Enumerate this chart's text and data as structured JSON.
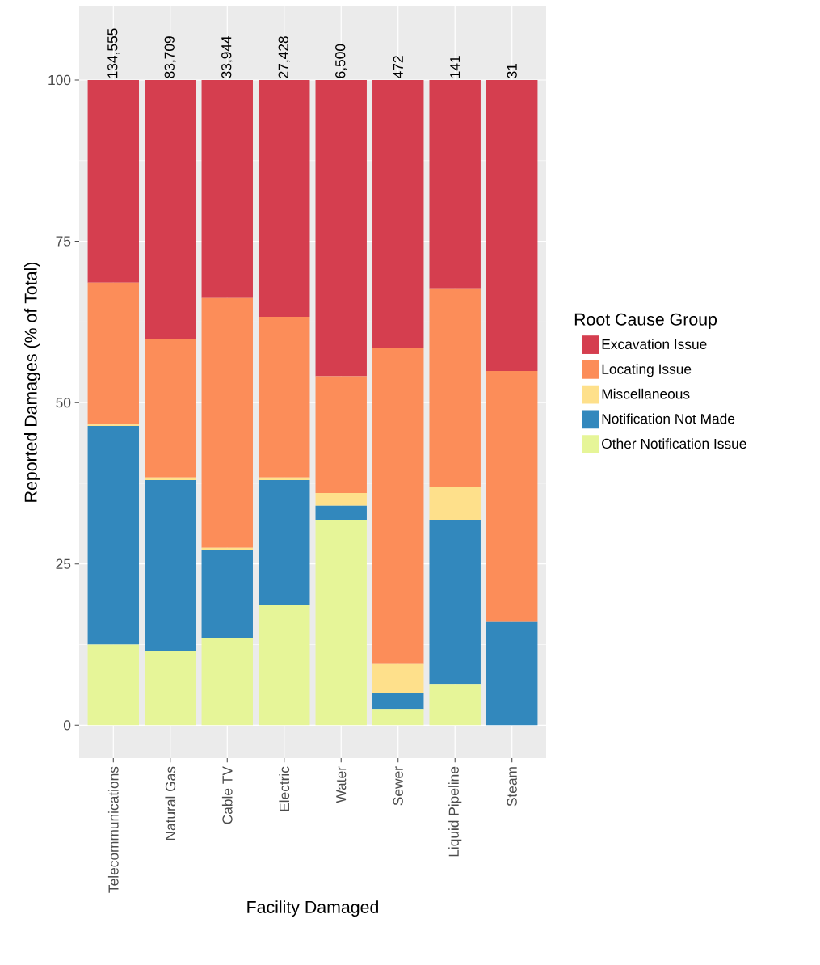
{
  "chart_data": {
    "type": "bar",
    "stacked": true,
    "xlabel": "Facility Damaged",
    "ylabel": "Reported Damages (% of Total)",
    "legend_title": "Root Cause Group",
    "categories": [
      "Telecommunications",
      "Natural Gas",
      "Cable TV",
      "Electric",
      "Water",
      "Sewer",
      "Liquid Pipeline",
      "Steam"
    ],
    "series": [
      {
        "name": "Other Notification Issue",
        "color": "#e6f598",
        "values": [
          12.5,
          11.5,
          13.5,
          18.6,
          31.8,
          2.5,
          6.4,
          0
        ]
      },
      {
        "name": "Notification Not Made",
        "color": "#3288bd",
        "values": [
          33.9,
          26.5,
          13.7,
          19.4,
          2.2,
          2.5,
          25.4,
          16.1
        ]
      },
      {
        "name": "Miscellaneous",
        "color": "#fee08b",
        "values": [
          0.2,
          0.4,
          0.3,
          0.4,
          2.0,
          4.6,
          5.2,
          0
        ]
      },
      {
        "name": "Locating Issue",
        "color": "#fc8d59",
        "values": [
          22.0,
          21.4,
          38.7,
          24.9,
          18.1,
          48.9,
          30.7,
          38.8
        ]
      },
      {
        "name": "Excavation Issue",
        "color": "#d53e4f",
        "values": [
          31.4,
          40.2,
          33.8,
          36.7,
          45.9,
          41.5,
          32.3,
          45.1
        ]
      }
    ],
    "annotations": [
      {
        "text": "134,555",
        "x": "Telecommunications",
        "y": 100
      },
      {
        "text": "83,709",
        "x": "Natural Gas",
        "y": 100
      },
      {
        "text": "33,944",
        "x": "Cable TV",
        "y": 100
      },
      {
        "text": "27,428",
        "x": "Electric",
        "y": 100
      },
      {
        "text": "6,500",
        "x": "Water",
        "y": 100
      },
      {
        "text": "472",
        "x": "Sewer",
        "y": 100
      },
      {
        "text": "141",
        "x": "Liquid Pipeline",
        "y": 100
      },
      {
        "text": "31",
        "x": "Steam",
        "y": 100
      }
    ],
    "ylim": [
      -5.1,
      111.4
    ],
    "yticks": [
      0,
      25,
      50,
      75,
      100
    ],
    "grid": true,
    "legend": "right"
  }
}
